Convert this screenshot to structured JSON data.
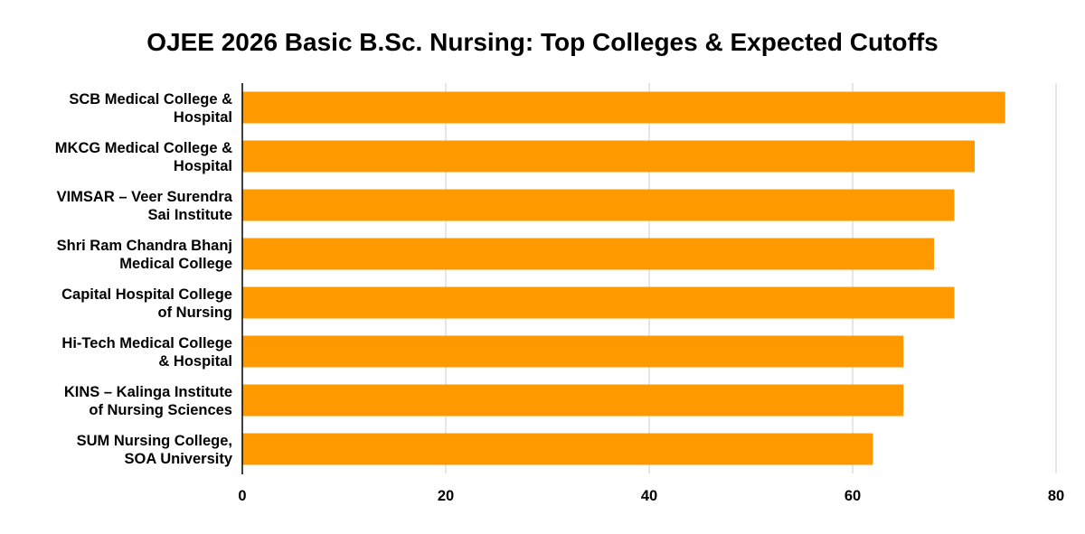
{
  "colors": {
    "bar": "#FF9900",
    "gridline": "#CCCCCC",
    "axis": "#000000",
    "text": "#000000",
    "background": "#FFFFFF"
  },
  "chart_data": {
    "type": "bar",
    "orientation": "horizontal",
    "title": "OJEE 2026 Basic B.Sc. Nursing: Top Colleges & Expected Cutoffs",
    "xlabel": "",
    "ylabel": "",
    "categories": [
      [
        "SCB Medical College &",
        "Hospital"
      ],
      [
        "MKCG Medical College &",
        "Hospital"
      ],
      [
        "VIMSAR – Veer Surendra",
        "Sai Institute"
      ],
      [
        "Shri Ram Chandra Bhanj",
        "Medical College"
      ],
      [
        "Capital Hospital College",
        "of Nursing"
      ],
      [
        "Hi-Tech Medical College",
        "& Hospital"
      ],
      [
        "KINS – Kalinga Institute",
        "of Nursing Sciences"
      ],
      [
        "SUM Nursing College,",
        "SOA University"
      ]
    ],
    "values": [
      75,
      72,
      70,
      68,
      70,
      65,
      65,
      62
    ],
    "xlim": [
      0,
      80
    ],
    "xticks": [
      0,
      20,
      40,
      60,
      80
    ],
    "grid": "vertical",
    "legend": "none"
  }
}
